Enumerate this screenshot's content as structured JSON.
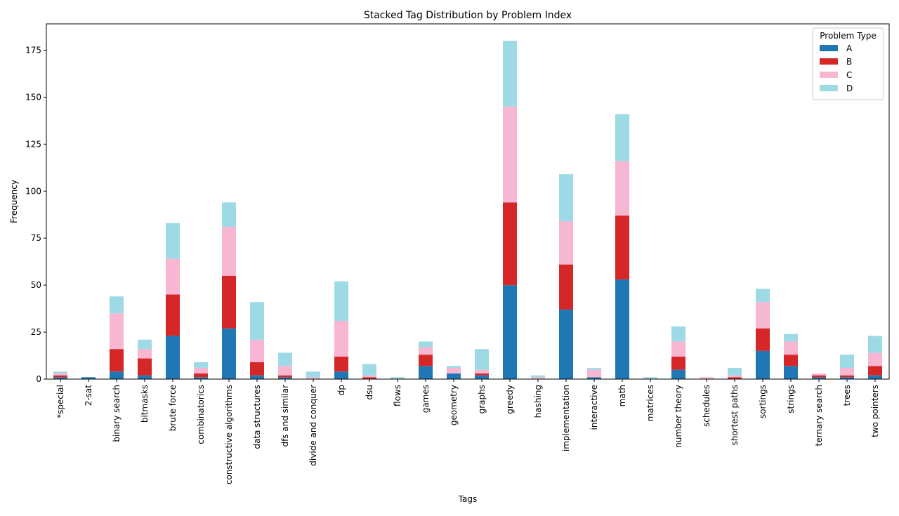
{
  "chart_data": {
    "type": "stacked_bar",
    "title": "Stacked Tag Distribution by Problem Index",
    "xlabel": "Tags",
    "ylabel": "Frequency",
    "categories": [
      "*special",
      "2-sat",
      "binary search",
      "bitmasks",
      "brute force",
      "combinatorics",
      "constructive algorithms",
      "data structures",
      "dfs and similar",
      "divide and conquer",
      "dp",
      "dsu",
      "flows",
      "games",
      "geometry",
      "graphs",
      "greedy",
      "hashing",
      "implementation",
      "interactive",
      "math",
      "matrices",
      "number theory",
      "schedules",
      "shortest paths",
      "sortings",
      "strings",
      "ternary search",
      "trees",
      "two pointers"
    ],
    "series": [
      {
        "name": "A",
        "color": "#1f77b4",
        "values": [
          1,
          1,
          4,
          2,
          23,
          1,
          27,
          2,
          1,
          0,
          4,
          0,
          0,
          7,
          3,
          2,
          50,
          0,
          37,
          1,
          53,
          0,
          5,
          0,
          0,
          15,
          7,
          1,
          1,
          2
        ]
      },
      {
        "name": "B",
        "color": "#d62728",
        "values": [
          1,
          0,
          12,
          9,
          22,
          2,
          28,
          7,
          1,
          0,
          8,
          1,
          0,
          6,
          0,
          1,
          44,
          0,
          24,
          0,
          34,
          0,
          7,
          0,
          1,
          12,
          6,
          1,
          1,
          5
        ]
      },
      {
        "name": "C",
        "color": "#f7b6d2",
        "values": [
          1,
          0,
          19,
          5,
          19,
          3,
          26,
          12,
          5,
          1,
          19,
          1,
          0,
          4,
          3,
          2,
          51,
          1,
          23,
          4,
          29,
          0,
          8,
          1,
          1,
          14,
          7,
          1,
          4,
          7
        ]
      },
      {
        "name": "D",
        "color": "#9edae5",
        "values": [
          1,
          0,
          9,
          5,
          19,
          3,
          13,
          20,
          7,
          3,
          21,
          6,
          1,
          3,
          1,
          11,
          35,
          1,
          25,
          1,
          25,
          1,
          8,
          0,
          4,
          7,
          4,
          0,
          7,
          9
        ]
      }
    ],
    "legend_title": "Problem Type",
    "legend_position": "upper right",
    "ylim": [
      0,
      189
    ],
    "yticks": [
      0,
      25,
      50,
      75,
      100,
      125,
      150,
      175
    ]
  }
}
